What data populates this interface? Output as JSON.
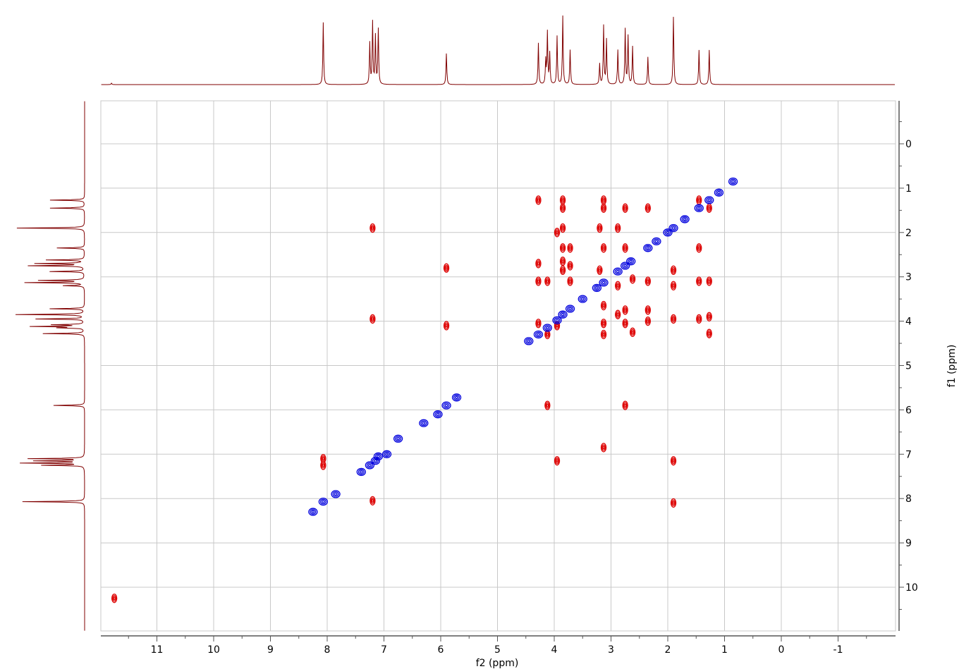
{
  "chart_data": {
    "type": "scatter",
    "subtype": "2D NMR COSY contour plot with 1D projections",
    "xlabel": "f2 (ppm)",
    "ylabel": "f1 (ppm)",
    "xlim": [
      12,
      -2
    ],
    "ylim": [
      -1,
      11
    ],
    "x_ticks": [
      "11",
      "10",
      "9",
      "8",
      "7",
      "6",
      "5",
      "4",
      "3",
      "2",
      "1",
      "0",
      "-1"
    ],
    "y_ticks": [
      "0",
      "1",
      "2",
      "3",
      "4",
      "5",
      "6",
      "7",
      "8",
      "9",
      "10"
    ],
    "grid": true,
    "colors": {
      "positive": "#0000dd",
      "negative": "#dd0000",
      "projection": "#800000",
      "grid": "#c8c8c8"
    },
    "projection_peaks": [
      [
        8.07,
        0.9
      ],
      [
        7.25,
        0.6
      ],
      [
        7.2,
        0.9
      ],
      [
        7.15,
        0.7
      ],
      [
        7.1,
        0.8
      ],
      [
        5.9,
        0.45
      ],
      [
        4.28,
        0.6
      ],
      [
        4.15,
        0.35
      ],
      [
        4.12,
        0.75
      ],
      [
        4.08,
        0.45
      ],
      [
        3.95,
        0.7
      ],
      [
        3.85,
        1.0
      ],
      [
        3.72,
        0.5
      ],
      [
        3.2,
        0.3
      ],
      [
        3.13,
        0.85
      ],
      [
        3.08,
        0.65
      ],
      [
        2.88,
        0.5
      ],
      [
        2.75,
        0.8
      ],
      [
        2.7,
        0.7
      ],
      [
        2.62,
        0.55
      ],
      [
        2.35,
        0.4
      ],
      [
        1.9,
        0.98
      ],
      [
        1.45,
        0.5
      ],
      [
        1.27,
        0.5
      ],
      [
        11.8,
        0.02
      ]
    ],
    "diagonal_peaks": [
      [
        8.25,
        8.3
      ],
      [
        8.07,
        8.07
      ],
      [
        7.85,
        7.9
      ],
      [
        7.4,
        7.4
      ],
      [
        7.25,
        7.25
      ],
      [
        7.15,
        7.15
      ],
      [
        7.1,
        7.05
      ],
      [
        6.95,
        7.0
      ],
      [
        6.75,
        6.65
      ],
      [
        6.3,
        6.3
      ],
      [
        6.05,
        6.1
      ],
      [
        5.9,
        5.9
      ],
      [
        5.72,
        5.72
      ],
      [
        4.45,
        4.45
      ],
      [
        4.28,
        4.3
      ],
      [
        4.12,
        4.15
      ],
      [
        3.95,
        3.98
      ],
      [
        3.85,
        3.85
      ],
      [
        3.72,
        3.72
      ],
      [
        3.5,
        3.5
      ],
      [
        3.25,
        3.25
      ],
      [
        3.13,
        3.13
      ],
      [
        2.88,
        2.88
      ],
      [
        2.75,
        2.75
      ],
      [
        2.65,
        2.65
      ],
      [
        2.35,
        2.35
      ],
      [
        2.2,
        2.2
      ],
      [
        2.0,
        2.0
      ],
      [
        1.9,
        1.9
      ],
      [
        1.7,
        1.7
      ],
      [
        1.45,
        1.45
      ],
      [
        1.27,
        1.27
      ],
      [
        1.1,
        1.1
      ],
      [
        0.85,
        0.85
      ]
    ],
    "cross_peaks": [
      [
        11.75,
        10.25
      ],
      [
        8.07,
        7.1
      ],
      [
        8.07,
        7.25
      ],
      [
        7.2,
        8.05
      ],
      [
        7.2,
        3.95
      ],
      [
        7.2,
        1.9
      ],
      [
        5.9,
        2.8
      ],
      [
        5.9,
        4.1
      ],
      [
        4.28,
        1.27
      ],
      [
        4.28,
        2.7
      ],
      [
        4.28,
        3.1
      ],
      [
        4.28,
        4.05
      ],
      [
        4.12,
        5.9
      ],
      [
        4.12,
        3.1
      ],
      [
        4.12,
        4.3
      ],
      [
        3.95,
        7.15
      ],
      [
        3.95,
        2.0
      ],
      [
        3.95,
        4.1
      ],
      [
        3.85,
        1.27
      ],
      [
        3.85,
        1.45
      ],
      [
        3.85,
        1.9
      ],
      [
        3.85,
        2.35
      ],
      [
        3.85,
        2.65
      ],
      [
        3.85,
        2.85
      ],
      [
        3.72,
        2.35
      ],
      [
        3.72,
        2.75
      ],
      [
        3.72,
        3.1
      ],
      [
        3.2,
        1.9
      ],
      [
        3.2,
        2.85
      ],
      [
        3.13,
        1.27
      ],
      [
        3.13,
        1.45
      ],
      [
        3.13,
        2.35
      ],
      [
        3.13,
        3.65
      ],
      [
        3.13,
        4.05
      ],
      [
        3.13,
        4.3
      ],
      [
        3.13,
        6.85
      ],
      [
        2.88,
        1.9
      ],
      [
        2.88,
        3.2
      ],
      [
        2.88,
        3.85
      ],
      [
        2.75,
        1.45
      ],
      [
        2.75,
        2.35
      ],
      [
        2.75,
        3.75
      ],
      [
        2.75,
        5.9
      ],
      [
        2.75,
        4.05
      ],
      [
        2.62,
        3.05
      ],
      [
        2.62,
        4.25
      ],
      [
        2.35,
        1.45
      ],
      [
        2.35,
        3.1
      ],
      [
        2.35,
        3.75
      ],
      [
        2.35,
        4.0
      ],
      [
        1.9,
        2.85
      ],
      [
        1.9,
        3.2
      ],
      [
        1.9,
        3.95
      ],
      [
        1.9,
        7.15
      ],
      [
        1.9,
        8.1
      ],
      [
        1.45,
        1.27
      ],
      [
        1.45,
        2.35
      ],
      [
        1.45,
        3.1
      ],
      [
        1.45,
        3.95
      ],
      [
        1.27,
        1.45
      ],
      [
        1.27,
        3.1
      ],
      [
        1.27,
        3.9
      ],
      [
        1.27,
        4.28
      ]
    ]
  }
}
